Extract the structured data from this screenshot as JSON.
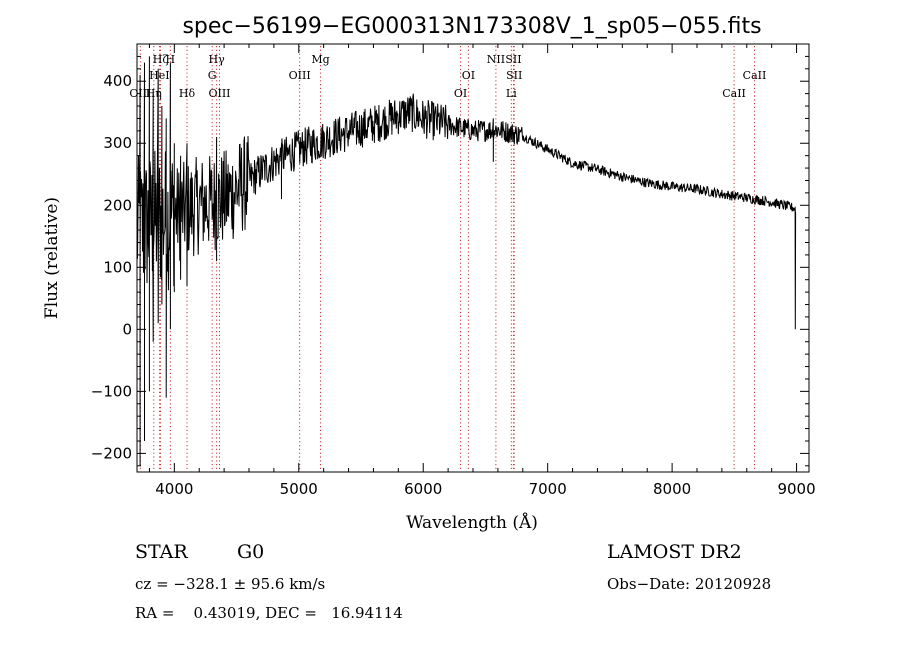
{
  "chart_data": {
    "type": "line",
    "title": "spec−56199−EG000313N173308V_1_sp05−055.fits",
    "xlabel": "Wavelength (Å)",
    "ylabel": "Flux (relative)",
    "xlim": [
      3700,
      9100
    ],
    "ylim": [
      -230,
      460
    ],
    "xticks": [
      4000,
      5000,
      6000,
      7000,
      8000,
      9000
    ],
    "xtick_labels": [
      "4000",
      "5000",
      "6000",
      "7000",
      "8000",
      "9000"
    ],
    "yticks": [
      -200,
      -100,
      0,
      100,
      200,
      300,
      400
    ],
    "ytick_labels": [
      "−200",
      "−100",
      "0",
      "100",
      "200",
      "300",
      "400"
    ],
    "grid": false,
    "series": [
      {
        "name": "spectrum",
        "continuum_points": [
          [
            3700,
            160
          ],
          [
            3850,
            175
          ],
          [
            4000,
            185
          ],
          [
            4200,
            200
          ],
          [
            4400,
            210
          ],
          [
            4600,
            240
          ],
          [
            4800,
            270
          ],
          [
            5000,
            290
          ],
          [
            5200,
            305
          ],
          [
            5400,
            318
          ],
          [
            5600,
            330
          ],
          [
            5800,
            345
          ],
          [
            5900,
            350
          ],
          [
            6000,
            340
          ],
          [
            6200,
            330
          ],
          [
            6400,
            320
          ],
          [
            6600,
            322
          ],
          [
            6800,
            312
          ],
          [
            7000,
            290
          ],
          [
            7200,
            268
          ],
          [
            7400,
            258
          ],
          [
            7600,
            246
          ],
          [
            7800,
            236
          ],
          [
            8000,
            230
          ],
          [
            8200,
            226
          ],
          [
            8400,
            218
          ],
          [
            8600,
            212
          ],
          [
            8800,
            205
          ],
          [
            8990,
            195
          ]
        ],
        "features": [
          {
            "x": 3725,
            "min": -220,
            "max": 410
          },
          {
            "x": 3760,
            "min": -180,
            "max": 430
          },
          {
            "x": 3800,
            "min": -100,
            "max": 440
          },
          {
            "x": 3830,
            "min": -20,
            "max": 380
          },
          {
            "x": 3870,
            "min": 10,
            "max": 420
          },
          {
            "x": 3900,
            "min": 40,
            "max": 360
          },
          {
            "x": 3935,
            "min": -110,
            "max": 340
          },
          {
            "x": 3968,
            "min": 0,
            "max": 430
          },
          {
            "x": 4000,
            "min": 60,
            "max": 300
          },
          {
            "x": 4050,
            "min": 80,
            "max": 280
          },
          {
            "x": 4102,
            "min": 70,
            "max": 300
          },
          {
            "x": 4340,
            "min": 110,
            "max": 310
          },
          {
            "x": 4861,
            "min": 210,
            "max": 300
          },
          {
            "x": 6563,
            "min": 270,
            "max": 340
          },
          {
            "x": 8990,
            "min": 0,
            "max": 190
          }
        ]
      }
    ],
    "line_markers": [
      {
        "label": "Hζ",
        "x": 3889,
        "row": 0
      },
      {
        "label": "OIII",
        "x": 3727,
        "row": 2
      },
      {
        "label": "HeI",
        "x": 3880,
        "row": 1
      },
      {
        "label": "Hη",
        "x": 3835,
        "row": 2
      },
      {
        "label": "H",
        "x": 3968,
        "row": 0
      },
      {
        "label": "Hδ",
        "x": 4102,
        "row": 2
      },
      {
        "label": "Hγ",
        "x": 4340,
        "row": 0
      },
      {
        "label": "G",
        "x": 4304,
        "row": 1
      },
      {
        "label": "OIII",
        "x": 4363,
        "row": 2
      },
      {
        "label": "OIII",
        "x": 5007,
        "row": 1
      },
      {
        "label": "Mg",
        "x": 5175,
        "row": 0
      },
      {
        "label": "OI",
        "x": 6363,
        "row": 1
      },
      {
        "label": "OI",
        "x": 6300,
        "row": 2
      },
      {
        "label": "NII",
        "x": 6584,
        "row": 0
      },
      {
        "label": "SII",
        "x": 6725,
        "row": 0
      },
      {
        "label": "SII",
        "x": 6731,
        "row": 1
      },
      {
        "label": "Li",
        "x": 6708,
        "row": 2
      },
      {
        "label": "CaII",
        "x": 8662,
        "row": 1
      },
      {
        "label": "CaII",
        "x": 8498,
        "row": 2
      }
    ]
  },
  "info": {
    "object_class": "STAR",
    "subclass": "G0",
    "survey": "LAMOST DR2",
    "cz": "cz = −328.1 ± 95.6 km/s",
    "obs_date": "Obs−Date: 20120928",
    "radec": "RA =    0.43019, DEC =   16.94114"
  }
}
